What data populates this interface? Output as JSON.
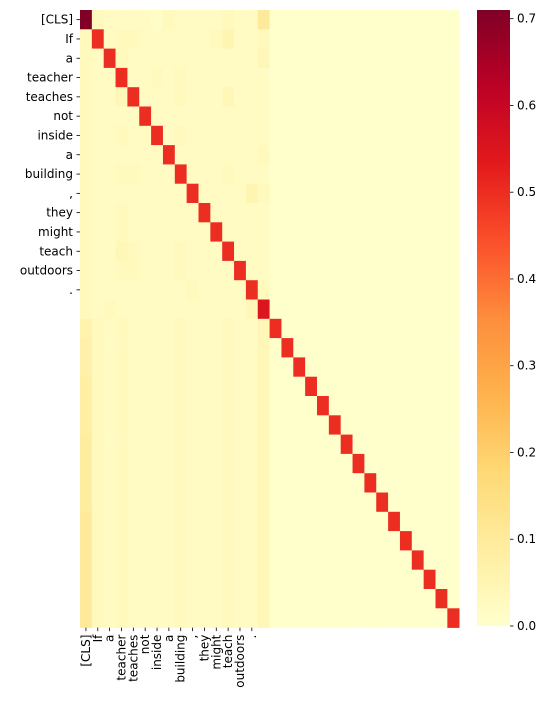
{
  "chart_data": {
    "type": "heatmap",
    "title": "",
    "xlabel": "",
    "ylabel": "",
    "colormap": "YlOrRd",
    "vmin": 0,
    "vmax": 0.71,
    "grid": false,
    "legend": "colorbar-right",
    "colorbar_ticks": [
      "0.0",
      "0.1",
      "0.2",
      "0.3",
      "0.4",
      "0.5",
      "0.6",
      "0.7"
    ],
    "colorbar_tick_values": [
      0.0,
      0.1,
      0.2,
      0.3,
      0.4,
      0.5,
      0.6,
      0.7
    ],
    "n_rows": 32,
    "n_cols": 32,
    "tokens": [
      "[CLS]",
      "If",
      "a",
      "teacher",
      "teaches",
      "not",
      "inside",
      "a",
      "building",
      ",",
      "they",
      "might",
      "teach",
      "outdoors",
      "."
    ],
    "row_labels": [
      "[CLS]",
      "If",
      "a",
      "teacher",
      "teaches",
      "not",
      "inside",
      "a",
      "building",
      ",",
      "they",
      "might",
      "teach",
      "outdoors",
      "."
    ],
    "col_labels": [
      "[CLS]",
      "If",
      "a",
      "teacher",
      "teaches",
      "not",
      "inside",
      "a",
      "building",
      ",",
      "they",
      "might",
      "teach",
      "outdoors",
      "."
    ],
    "values": [
      [
        0.71,
        0.03,
        0.02,
        0.02,
        0.02,
        0.02,
        0.01,
        0.03,
        0.02,
        0.02,
        0.02,
        0.02,
        0.03,
        0.02,
        0.02,
        0.1,
        0,
        0,
        0,
        0,
        0,
        0,
        0,
        0,
        0,
        0,
        0,
        0,
        0,
        0,
        0,
        0
      ],
      [
        0.03,
        0.5,
        0.02,
        0.03,
        0.03,
        0.02,
        0.02,
        0.02,
        0.02,
        0.02,
        0.02,
        0.03,
        0.05,
        0.02,
        0.02,
        0.03,
        0,
        0,
        0,
        0,
        0,
        0,
        0,
        0,
        0,
        0,
        0,
        0,
        0,
        0,
        0,
        0
      ],
      [
        0.03,
        0.02,
        0.5,
        0.03,
        0.02,
        0.02,
        0.02,
        0.02,
        0.02,
        0.02,
        0.02,
        0.02,
        0.02,
        0.02,
        0.02,
        0.04,
        0,
        0,
        0,
        0,
        0,
        0,
        0,
        0,
        0,
        0,
        0,
        0,
        0,
        0,
        0,
        0
      ],
      [
        0.03,
        0.02,
        0.02,
        0.5,
        0.02,
        0.02,
        0.03,
        0.02,
        0.03,
        0.02,
        0.02,
        0.02,
        0.02,
        0.02,
        0.02,
        0.02,
        0,
        0,
        0,
        0,
        0,
        0,
        0,
        0,
        0,
        0,
        0,
        0,
        0,
        0,
        0,
        0
      ],
      [
        0.03,
        0.02,
        0.02,
        0.04,
        0.5,
        0.02,
        0.02,
        0.02,
        0.03,
        0.02,
        0.02,
        0.02,
        0.04,
        0.02,
        0.02,
        0.02,
        0,
        0,
        0,
        0,
        0,
        0,
        0,
        0,
        0,
        0,
        0,
        0,
        0,
        0,
        0,
        0
      ],
      [
        0.03,
        0.02,
        0.02,
        0.02,
        0.02,
        0.5,
        0.02,
        0.02,
        0.02,
        0.02,
        0.02,
        0.02,
        0.02,
        0.02,
        0.02,
        0.02,
        0,
        0,
        0,
        0,
        0,
        0,
        0,
        0,
        0,
        0,
        0,
        0,
        0,
        0,
        0,
        0
      ],
      [
        0.03,
        0.02,
        0.02,
        0.03,
        0.02,
        0.02,
        0.5,
        0.02,
        0.03,
        0.02,
        0.02,
        0.02,
        0.02,
        0.02,
        0.02,
        0.02,
        0,
        0,
        0,
        0,
        0,
        0,
        0,
        0,
        0,
        0,
        0,
        0,
        0,
        0,
        0,
        0
      ],
      [
        0.03,
        0.02,
        0.02,
        0.02,
        0.02,
        0.02,
        0.02,
        0.5,
        0.02,
        0.02,
        0.02,
        0.02,
        0.02,
        0.02,
        0.02,
        0.03,
        0,
        0,
        0,
        0,
        0,
        0,
        0,
        0,
        0,
        0,
        0,
        0,
        0,
        0,
        0,
        0
      ],
      [
        0.03,
        0.02,
        0.02,
        0.03,
        0.03,
        0.02,
        0.02,
        0.02,
        0.5,
        0.02,
        0.02,
        0.02,
        0.03,
        0.02,
        0.02,
        0.02,
        0,
        0,
        0,
        0,
        0,
        0,
        0,
        0,
        0,
        0,
        0,
        0,
        0,
        0,
        0,
        0
      ],
      [
        0.03,
        0.02,
        0.02,
        0.02,
        0.02,
        0.02,
        0.02,
        0.02,
        0.02,
        0.5,
        0.02,
        0.02,
        0.02,
        0.02,
        0.05,
        0.03,
        0,
        0,
        0,
        0,
        0,
        0,
        0,
        0,
        0,
        0,
        0,
        0,
        0,
        0,
        0,
        0
      ],
      [
        0.03,
        0.02,
        0.02,
        0.03,
        0.02,
        0.02,
        0.02,
        0.02,
        0.02,
        0.02,
        0.5,
        0.02,
        0.02,
        0.02,
        0.02,
        0.02,
        0,
        0,
        0,
        0,
        0,
        0,
        0,
        0,
        0,
        0,
        0,
        0,
        0,
        0,
        0,
        0
      ],
      [
        0.03,
        0.02,
        0.02,
        0.03,
        0.02,
        0.02,
        0.02,
        0.02,
        0.02,
        0.02,
        0.02,
        0.5,
        0.02,
        0.02,
        0.02,
        0.02,
        0,
        0,
        0,
        0,
        0,
        0,
        0,
        0,
        0,
        0,
        0,
        0,
        0,
        0,
        0,
        0
      ],
      [
        0.03,
        0.02,
        0.02,
        0.04,
        0.03,
        0.02,
        0.02,
        0.02,
        0.03,
        0.02,
        0.02,
        0.02,
        0.5,
        0.02,
        0.02,
        0.02,
        0,
        0,
        0,
        0,
        0,
        0,
        0,
        0,
        0,
        0,
        0,
        0,
        0,
        0,
        0,
        0
      ],
      [
        0.03,
        0.02,
        0.02,
        0.03,
        0.03,
        0.02,
        0.02,
        0.02,
        0.03,
        0.02,
        0.02,
        0.02,
        0.02,
        0.5,
        0.02,
        0.02,
        0,
        0,
        0,
        0,
        0,
        0,
        0,
        0,
        0,
        0,
        0,
        0,
        0,
        0,
        0,
        0
      ],
      [
        0.03,
        0.02,
        0.02,
        0.02,
        0.02,
        0.02,
        0.02,
        0.02,
        0.02,
        0.03,
        0.02,
        0.02,
        0.02,
        0.02,
        0.5,
        0.03,
        0,
        0,
        0,
        0,
        0,
        0,
        0,
        0,
        0,
        0,
        0,
        0,
        0,
        0,
        0,
        0
      ],
      [
        0.03,
        0.02,
        0.03,
        0.02,
        0.02,
        0.02,
        0.02,
        0.02,
        0.02,
        0.02,
        0.02,
        0.02,
        0.02,
        0.02,
        0.04,
        0.55,
        0,
        0,
        0,
        0,
        0,
        0,
        0,
        0,
        0,
        0,
        0,
        0,
        0,
        0,
        0,
        0
      ],
      [
        0.06,
        0.03,
        0.02,
        0.03,
        0.02,
        0.02,
        0.02,
        0.02,
        0.03,
        0.02,
        0.02,
        0.02,
        0.03,
        0.02,
        0.02,
        0.04,
        0.5,
        0,
        0,
        0,
        0,
        0,
        0,
        0,
        0,
        0,
        0,
        0,
        0,
        0,
        0,
        0
      ],
      [
        0.07,
        0.03,
        0.02,
        0.03,
        0.02,
        0.02,
        0.02,
        0.02,
        0.03,
        0.02,
        0.02,
        0.02,
        0.03,
        0.02,
        0.02,
        0.04,
        0,
        0.5,
        0,
        0,
        0,
        0,
        0,
        0,
        0,
        0,
        0,
        0,
        0,
        0,
        0,
        0
      ],
      [
        0.07,
        0.03,
        0.02,
        0.03,
        0.02,
        0.02,
        0.02,
        0.02,
        0.03,
        0.02,
        0.02,
        0.02,
        0.03,
        0.02,
        0.02,
        0.04,
        0,
        0,
        0.5,
        0,
        0,
        0,
        0,
        0,
        0,
        0,
        0,
        0,
        0,
        0,
        0,
        0
      ],
      [
        0.08,
        0.03,
        0.02,
        0.03,
        0.02,
        0.02,
        0.02,
        0.02,
        0.03,
        0.02,
        0.02,
        0.02,
        0.03,
        0.02,
        0.02,
        0.04,
        0,
        0,
        0,
        0.5,
        0,
        0,
        0,
        0,
        0,
        0,
        0,
        0,
        0,
        0,
        0,
        0
      ],
      [
        0.08,
        0.03,
        0.02,
        0.03,
        0.02,
        0.02,
        0.02,
        0.02,
        0.03,
        0.02,
        0.02,
        0.02,
        0.03,
        0.02,
        0.02,
        0.04,
        0,
        0,
        0,
        0,
        0.5,
        0,
        0,
        0,
        0,
        0,
        0,
        0,
        0,
        0,
        0,
        0
      ],
      [
        0.08,
        0.03,
        0.02,
        0.03,
        0.02,
        0.02,
        0.02,
        0.02,
        0.03,
        0.02,
        0.02,
        0.02,
        0.03,
        0.02,
        0.02,
        0.04,
        0,
        0,
        0,
        0,
        0,
        0.5,
        0,
        0,
        0,
        0,
        0,
        0,
        0,
        0,
        0,
        0
      ],
      [
        0.09,
        0.03,
        0.02,
        0.03,
        0.02,
        0.02,
        0.02,
        0.02,
        0.03,
        0.02,
        0.02,
        0.02,
        0.03,
        0.02,
        0.02,
        0.04,
        0,
        0,
        0,
        0,
        0,
        0,
        0.5,
        0,
        0,
        0,
        0,
        0,
        0,
        0,
        0,
        0
      ],
      [
        0.09,
        0.03,
        0.02,
        0.03,
        0.02,
        0.02,
        0.02,
        0.02,
        0.03,
        0.02,
        0.02,
        0.02,
        0.03,
        0.02,
        0.02,
        0.04,
        0,
        0,
        0,
        0,
        0,
        0,
        0,
        0.5,
        0,
        0,
        0,
        0,
        0,
        0,
        0,
        0
      ],
      [
        0.09,
        0.03,
        0.02,
        0.03,
        0.02,
        0.02,
        0.02,
        0.02,
        0.03,
        0.02,
        0.02,
        0.02,
        0.03,
        0.02,
        0.02,
        0.04,
        0,
        0,
        0,
        0,
        0,
        0,
        0,
        0,
        0.5,
        0,
        0,
        0,
        0,
        0,
        0,
        0
      ],
      [
        0.09,
        0.03,
        0.02,
        0.03,
        0.02,
        0.02,
        0.02,
        0.02,
        0.03,
        0.02,
        0.02,
        0.02,
        0.03,
        0.02,
        0.02,
        0.04,
        0,
        0,
        0,
        0,
        0,
        0,
        0,
        0,
        0,
        0.5,
        0,
        0,
        0,
        0,
        0,
        0
      ],
      [
        0.1,
        0.03,
        0.02,
        0.03,
        0.02,
        0.02,
        0.02,
        0.02,
        0.03,
        0.02,
        0.02,
        0.02,
        0.03,
        0.02,
        0.02,
        0.04,
        0,
        0,
        0,
        0,
        0,
        0,
        0,
        0,
        0,
        0,
        0.5,
        0,
        0,
        0,
        0,
        0
      ],
      [
        0.1,
        0.03,
        0.02,
        0.03,
        0.02,
        0.02,
        0.02,
        0.02,
        0.03,
        0.02,
        0.02,
        0.02,
        0.03,
        0.02,
        0.02,
        0.04,
        0,
        0,
        0,
        0,
        0,
        0,
        0,
        0,
        0,
        0,
        0,
        0.5,
        0,
        0,
        0,
        0
      ],
      [
        0.1,
        0.03,
        0.02,
        0.03,
        0.02,
        0.02,
        0.02,
        0.02,
        0.03,
        0.02,
        0.02,
        0.02,
        0.03,
        0.02,
        0.02,
        0.04,
        0,
        0,
        0,
        0,
        0,
        0,
        0,
        0,
        0,
        0,
        0,
        0,
        0.5,
        0,
        0,
        0
      ],
      [
        0.1,
        0.03,
        0.02,
        0.03,
        0.02,
        0.02,
        0.02,
        0.02,
        0.03,
        0.02,
        0.02,
        0.02,
        0.03,
        0.02,
        0.02,
        0.04,
        0,
        0,
        0,
        0,
        0,
        0,
        0,
        0,
        0,
        0,
        0,
        0,
        0,
        0.5,
        0,
        0
      ],
      [
        0.1,
        0.03,
        0.02,
        0.03,
        0.02,
        0.02,
        0.02,
        0.02,
        0.03,
        0.02,
        0.02,
        0.02,
        0.03,
        0.02,
        0.02,
        0.04,
        0,
        0,
        0,
        0,
        0,
        0,
        0,
        0,
        0,
        0,
        0,
        0,
        0,
        0,
        0.5,
        0
      ],
      [
        0.1,
        0.03,
        0.02,
        0.03,
        0.02,
        0.02,
        0.02,
        0.02,
        0.03,
        0.02,
        0.02,
        0.02,
        0.03,
        0.02,
        0.02,
        0.04,
        0,
        0,
        0,
        0,
        0,
        0,
        0,
        0,
        0,
        0,
        0,
        0,
        0,
        0,
        0,
        0.5
      ]
    ]
  }
}
